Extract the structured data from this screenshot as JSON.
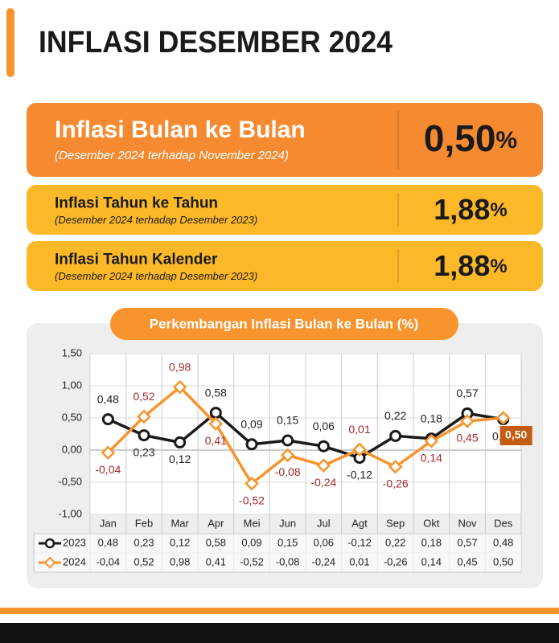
{
  "header": {
    "title": "INFLASI DESEMBER 2024"
  },
  "cards": [
    {
      "title": "Inflasi Bulan ke Bulan",
      "subtitle": "(Desember 2024 terhadap November 2024)",
      "value": "0,50",
      "unit": "%"
    },
    {
      "title": "Inflasi Tahun ke Tahun",
      "subtitle": "(Desember 2024 terhadap Desember 2023)",
      "value": "1,88",
      "unit": "%"
    },
    {
      "title": "Inflasi Tahun Kalender",
      "subtitle": "(Desember 2024 terhadap Desember 2023)",
      "value": "1,88",
      "unit": "%"
    }
  ],
  "chart_data": {
    "type": "line",
    "title": "Perkembangan Inflasi Bulan ke Bulan (%)",
    "categories": [
      "Jan",
      "Feb",
      "Mar",
      "Apr",
      "Mei",
      "Jun",
      "Jul",
      "Agt",
      "Sep",
      "Okt",
      "Nov",
      "Des"
    ],
    "series": [
      {
        "name": "2023",
        "color": "#1a1a1a",
        "values": [
          0.48,
          0.23,
          0.12,
          0.58,
          0.09,
          0.15,
          0.06,
          -0.12,
          0.22,
          0.18,
          0.57,
          0.48
        ],
        "value_labels": [
          "0,48",
          "0,23",
          "0,12",
          "0,58",
          "0,09",
          "0,15",
          "0,06",
          "-0,12",
          "0,22",
          "0,18",
          "0,57",
          "0,48"
        ]
      },
      {
        "name": "2024",
        "color": "#f7942e",
        "values": [
          -0.04,
          0.52,
          0.98,
          0.41,
          -0.52,
          -0.08,
          -0.24,
          0.01,
          -0.26,
          0.14,
          0.45,
          0.5
        ],
        "value_labels": [
          "-0,04",
          "0,52",
          "0,98",
          "0,41",
          "-0,52",
          "-0,08",
          "-0,24",
          "0,01",
          "-0,26",
          "0,14",
          "0,45",
          "0,50"
        ]
      }
    ],
    "ylim": [
      -1,
      1.5
    ],
    "yticks": [
      {
        "value": -1,
        "label": "-1,00"
      },
      {
        "value": -0.5,
        "label": "-0,50"
      },
      {
        "value": 0,
        "label": "0,00"
      },
      {
        "value": 0.5,
        "label": "0,50"
      },
      {
        "value": 1,
        "label": "1,00"
      },
      {
        "value": 1.5,
        "label": "1,50"
      }
    ],
    "grid": true
  }
}
